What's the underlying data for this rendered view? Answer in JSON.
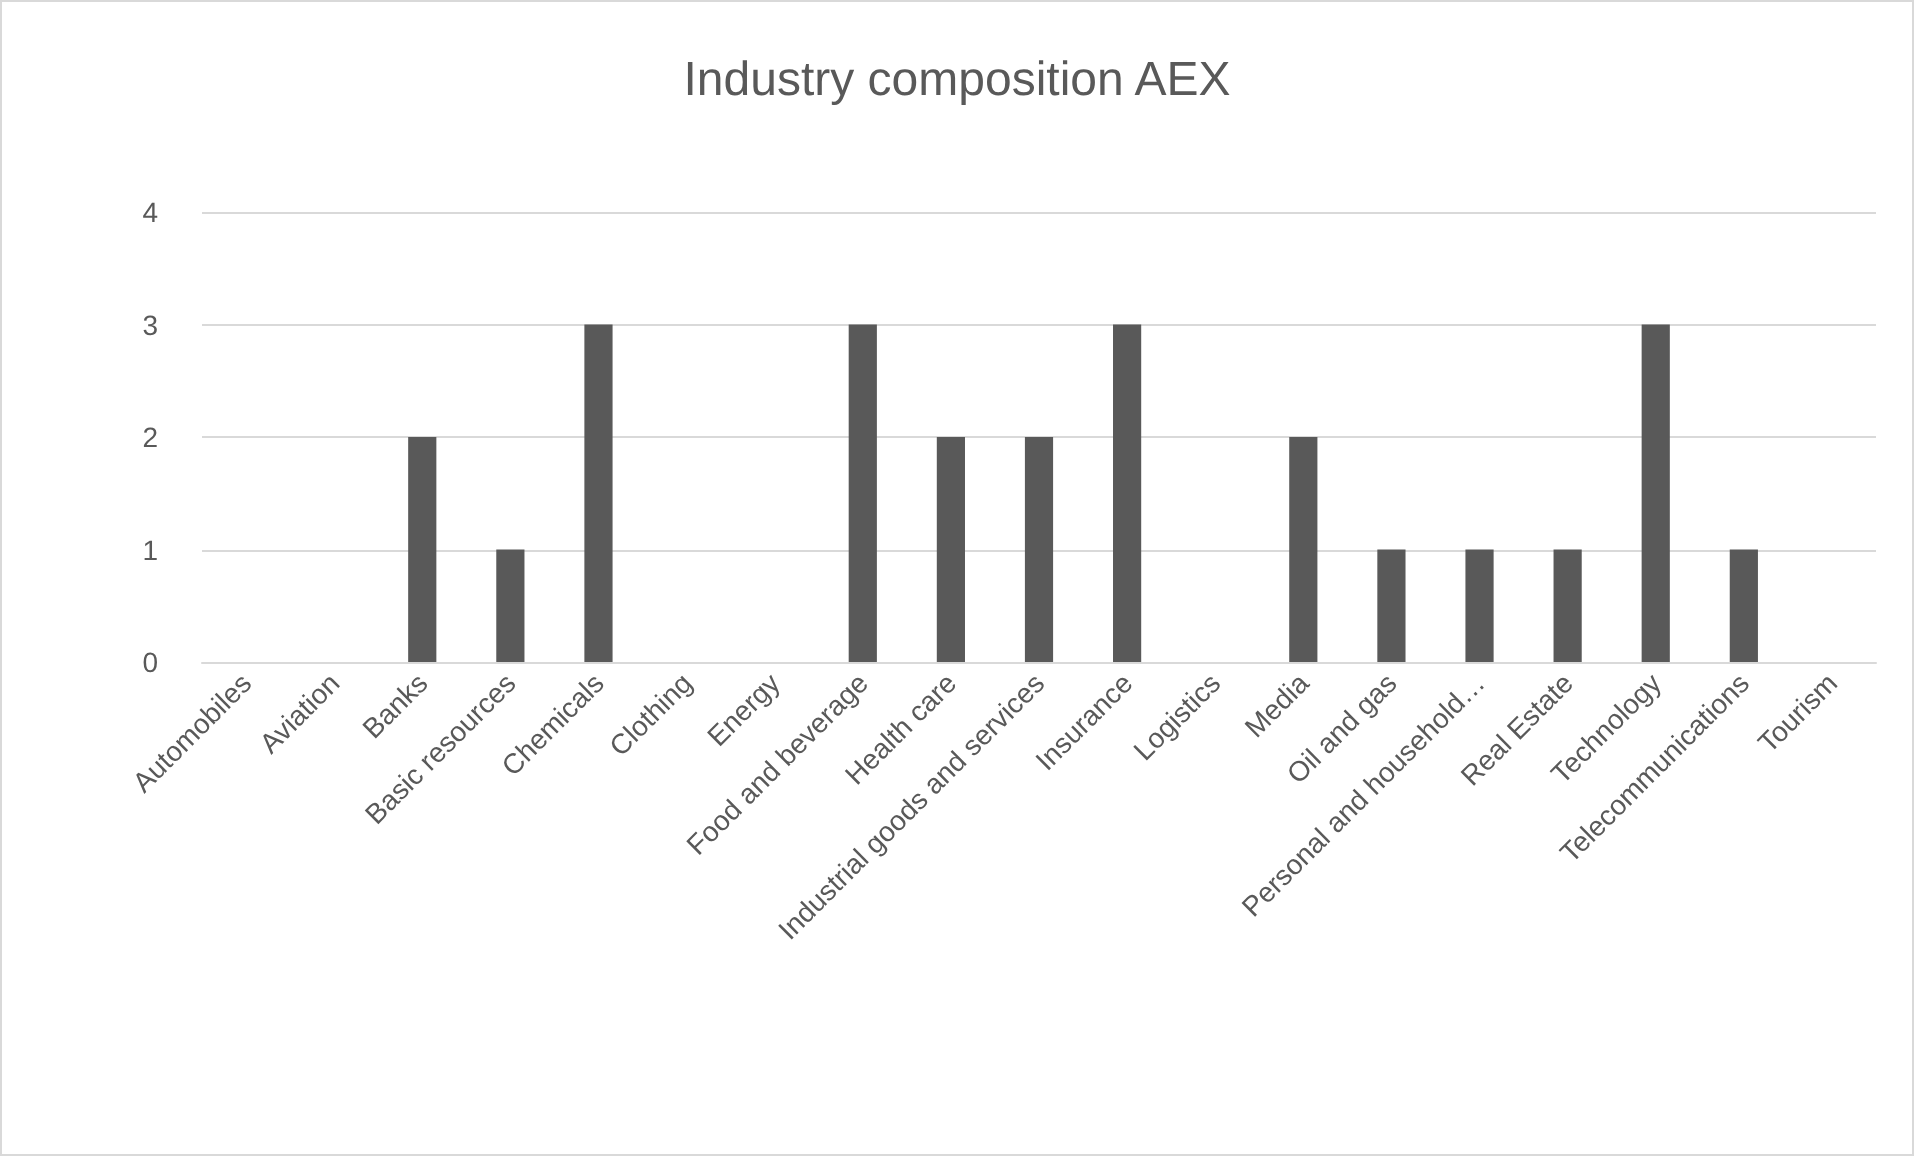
{
  "chart_data": {
    "type": "bar",
    "title": "Industry composition AEX",
    "categories": [
      "Automobiles",
      "Aviation",
      "Banks",
      "Basic resources",
      "Chemicals",
      "Clothing",
      "Energy",
      "Food and beverage",
      "Health care",
      "Industrial goods and services",
      "Insurance",
      "Logistics",
      "Media",
      "Oil and gas",
      "Personal and household…",
      "Real Estate",
      "Technology",
      "Telecommunications",
      "Tourism"
    ],
    "values": [
      0,
      0,
      2,
      1,
      3,
      0,
      0,
      3,
      2,
      2,
      3,
      0,
      2,
      1,
      1,
      1,
      3,
      1,
      0
    ],
    "color": "#595959",
    "ylim": [
      0,
      4
    ],
    "yticks": [
      0,
      1,
      2,
      3,
      4
    ],
    "grid": "y"
  }
}
